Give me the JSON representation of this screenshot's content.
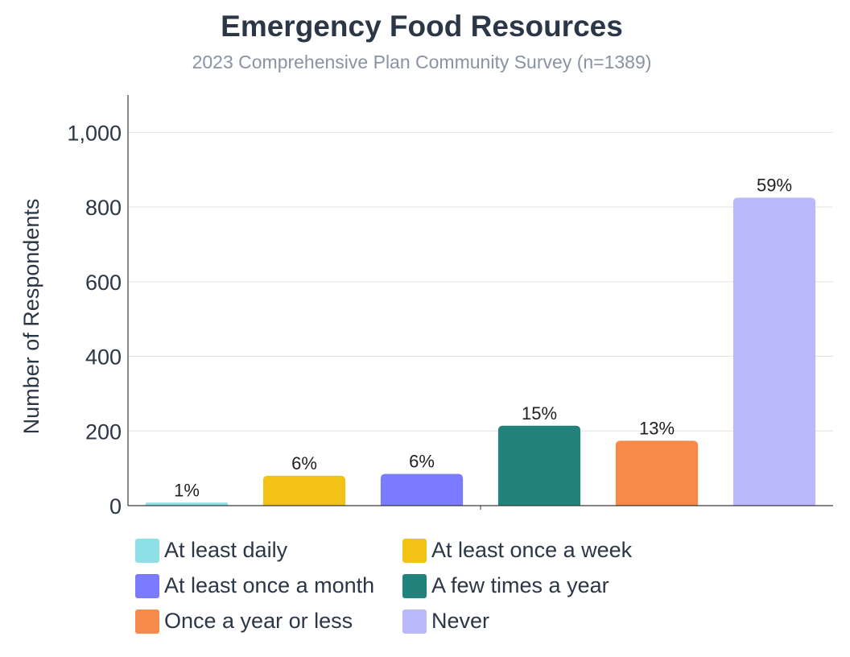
{
  "chart_data": {
    "type": "bar",
    "title": "Emergency Food Resources",
    "subtitle": "2023 Comprehensive Plan Community Survey (n=1389)",
    "xlabel": "",
    "ylabel": "Number of Respondents",
    "ylim": [
      0,
      1100
    ],
    "yticks": [
      0,
      200,
      400,
      600,
      800,
      1000
    ],
    "ytick_labels": [
      "0",
      "200",
      "400",
      "600",
      "800",
      "1,000"
    ],
    "grid": true,
    "legend_position": "bottom",
    "categories": [
      "At least daily",
      "At least once a week",
      "At least once a month",
      "A few times a year",
      "Once a year or less",
      "Never"
    ],
    "values": [
      8,
      80,
      85,
      214,
      174,
      825
    ],
    "labels": [
      "1%",
      "6%",
      "6%",
      "15%",
      "13%",
      "59%"
    ],
    "colors": [
      "#8de0e6",
      "#f2c314",
      "#7b7bff",
      "#22837c",
      "#f58a4b",
      "#b9b9fb"
    ]
  }
}
